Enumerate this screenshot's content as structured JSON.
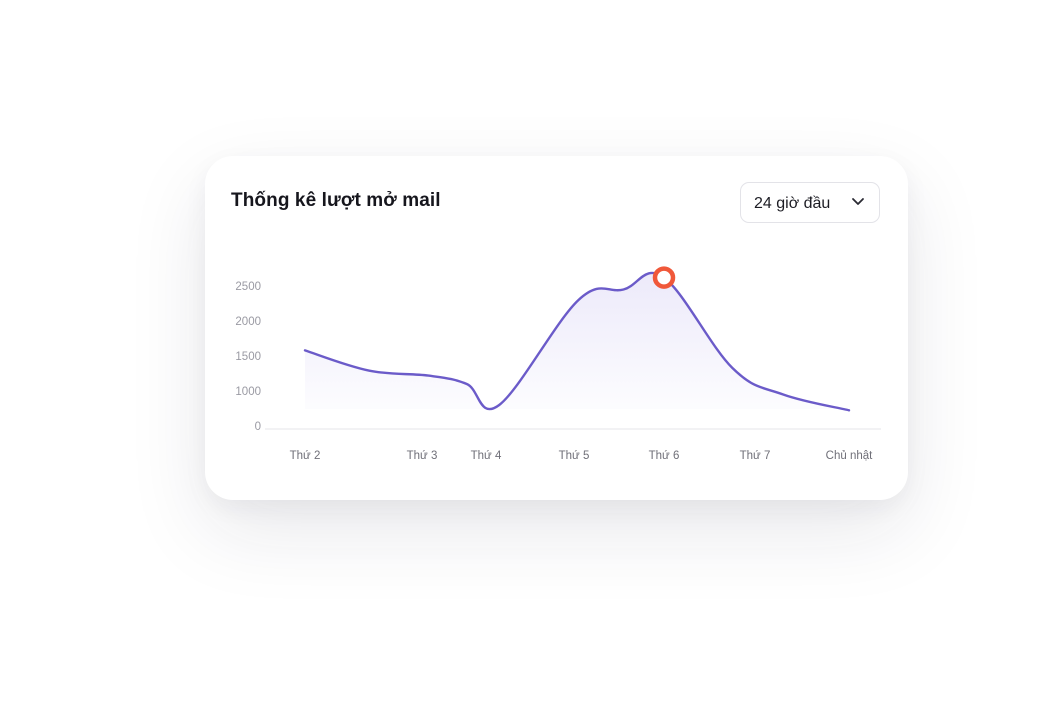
{
  "card": {
    "title": "Thống kê lượt mở mail"
  },
  "range_selector": {
    "selected": "24 giờ đầu",
    "icon": "chevron-down-icon"
  },
  "chart_data": {
    "type": "area",
    "title": "Thống kê lượt mở mail",
    "xlabel": "",
    "ylabel": "",
    "y_ticks": [
      0,
      1000,
      1500,
      2000,
      2500
    ],
    "x_ticks": [
      "Thứ 2",
      "Thứ 3",
      "Thứ 4",
      "Thứ 5",
      "Thứ 6",
      "Thứ 7",
      "Chủ nhật"
    ],
    "series": [
      {
        "color": "#6b5bc9",
        "fill_color": "#8b7be0",
        "points": [
          {
            "x": 1.0,
            "y": 1580
          },
          {
            "x": 1.55,
            "y": 1290
          },
          {
            "x": 2.1,
            "y": 1220
          },
          {
            "x": 2.7,
            "y": 1100
          },
          {
            "x": 3.15,
            "y": 600
          },
          {
            "x": 4.05,
            "y": 2300
          },
          {
            "x": 4.55,
            "y": 2450
          },
          {
            "x": 5.0,
            "y": 2620
          },
          {
            "x": 5.75,
            "y": 1330
          },
          {
            "x": 6.3,
            "y": 900
          },
          {
            "x": 7.0,
            "y": 450
          }
        ]
      }
    ],
    "highlight": {
      "x": 5.0,
      "y": 2620,
      "color": "#f0583a"
    },
    "grid": false,
    "legend": "none"
  }
}
